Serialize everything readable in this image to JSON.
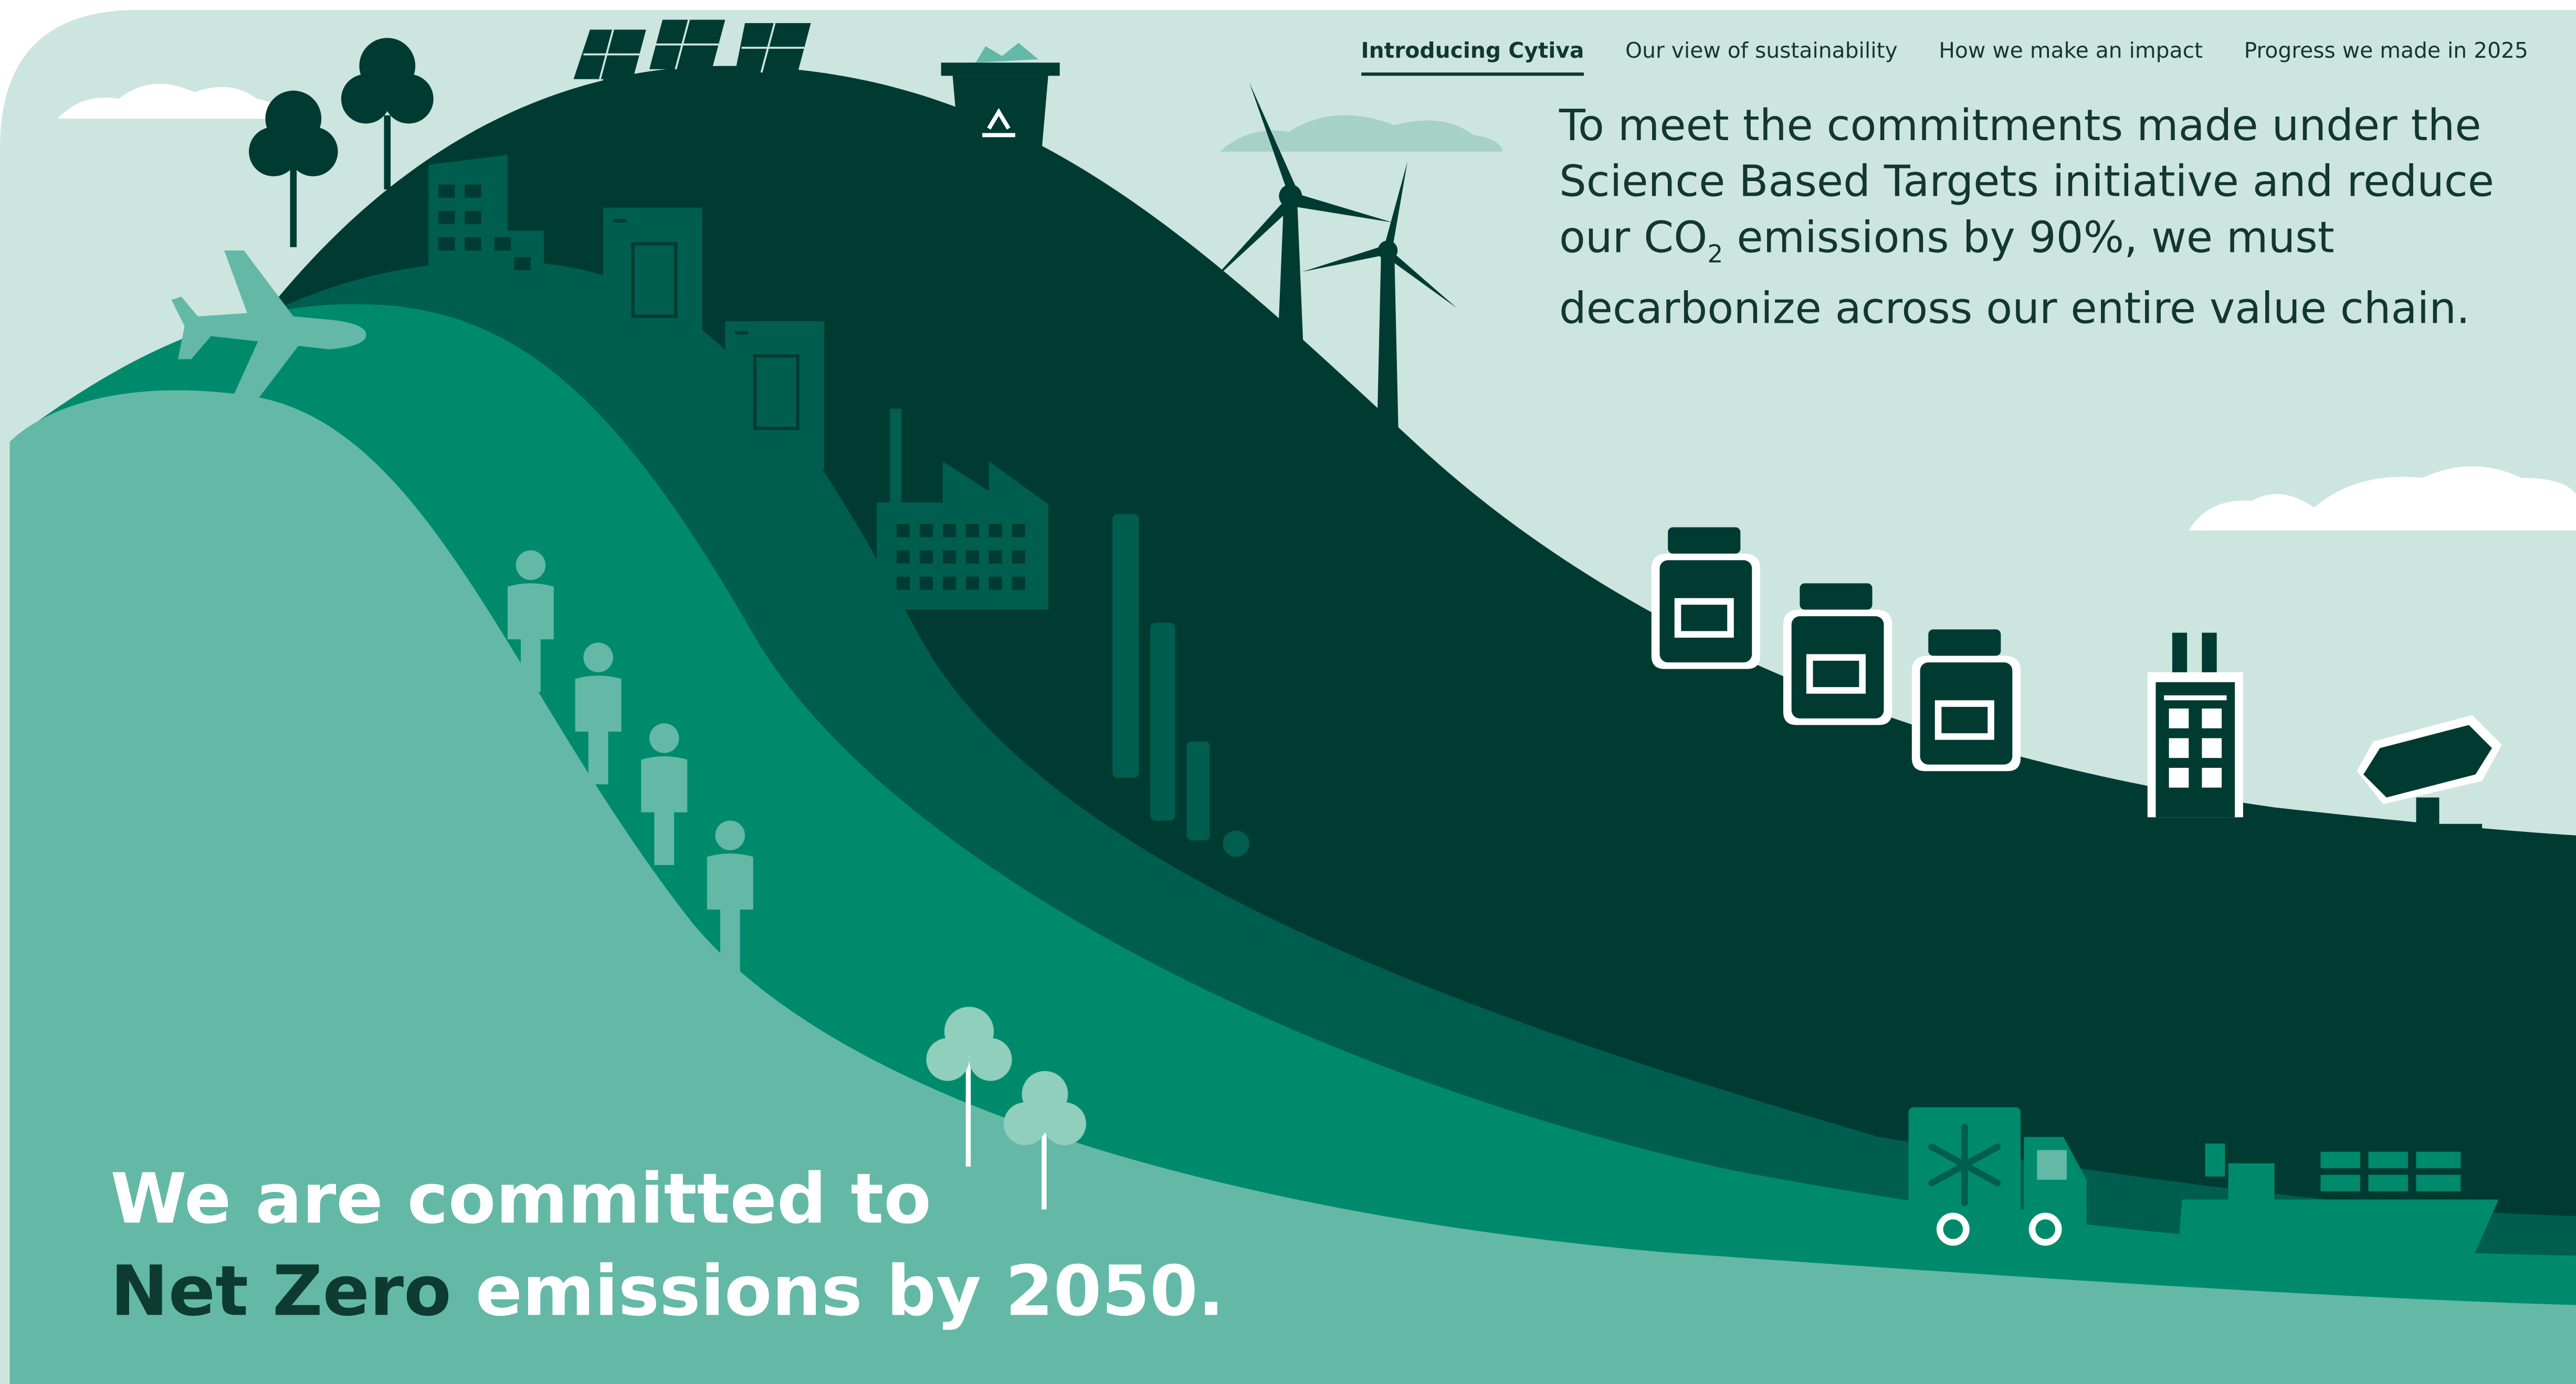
{
  "nav": {
    "items": [
      {
        "label": "Introducing Cytiva",
        "active": true
      },
      {
        "label": "Our view of sustainability",
        "active": false
      },
      {
        "label": "How we make an impact",
        "active": false
      },
      {
        "label": "Progress we made in 2025",
        "active": false
      }
    ]
  },
  "intro": {
    "lead": "To meet the commitments made under the Science Based Targets initiative and reduce our CO",
    "subscript": "2",
    "tail": " emissions by 90%, we must decarbonize across our entire value chain."
  },
  "headline": {
    "line1": "We are committed to",
    "emphasis": "Net Zero",
    "rest": " emissions by 2050."
  },
  "icons": [
    "solar-panel-icon",
    "tree-icon",
    "recycle-bin-icon",
    "wind-turbine-icon",
    "office-building-icon",
    "document-icon",
    "factory-icon",
    "airplane-icon",
    "person-icon",
    "pipe-column-icon",
    "medicine-bottle-icon",
    "lab-building-icon",
    "equipment-icon",
    "refrigerated-truck-icon",
    "cargo-ship-icon",
    "cloud-icon"
  ],
  "colors": {
    "sky": "#cde5df",
    "hill_darkest": "#003b32",
    "hill_dark": "#005e4e",
    "hill_mid": "#008a6c",
    "hill_light": "#63b9a6",
    "text_dark": "#12382d",
    "white": "#ffffff"
  }
}
